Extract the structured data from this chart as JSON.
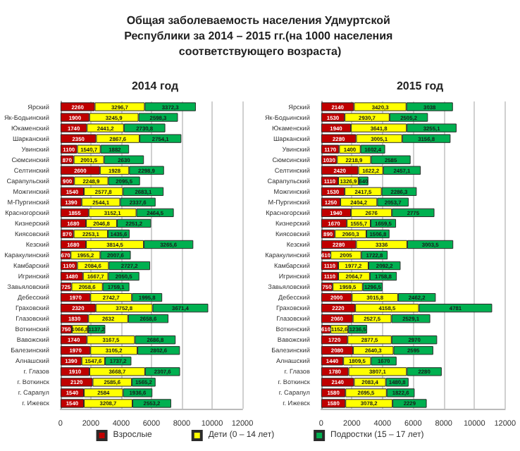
{
  "chart_data": [
    {
      "type": "bar",
      "title": "Общая заболеваемость населения Удмуртской Республики за 2014 – 2015 гг.(на 1000 населения соответствующего возраста)",
      "subtitle": "2014 год",
      "orientation": "horizontal",
      "stacked": true,
      "grid": "x",
      "legend": "bottom",
      "xlim": [
        0,
        12000
      ],
      "xticks": [
        0,
        2000,
        4000,
        6000,
        8000,
        10000,
        12000
      ],
      "categories": [
        "Ярский",
        "Як-Бодьинский",
        "Юкаменский",
        "Шарканский",
        "Увинский",
        "Сюмсинский",
        "Селтинский",
        "Сарапульский",
        "Можгинский",
        "М-Пургинский",
        "Красногорский",
        "Кизнерский",
        "Киясовский",
        "Кезский",
        "Каракулинский",
        "Камбарский",
        "Игринский",
        "Завьяловский",
        "Дебесский",
        "Граховский",
        "Глазовский",
        "Воткинский",
        "Вавожский",
        "Балезинский",
        "Алнашский",
        "г. Глазов",
        "г. Воткинск",
        "г. Сарапул",
        "г. Ижевск"
      ],
      "series": [
        {
          "name": "Взрослые",
          "color": "#c00000",
          "values": [
            2260,
            1900,
            1740,
            2350,
            1100,
            870,
            2600,
            900,
            1540,
            1390,
            1855,
            1680,
            870,
            1680,
            670,
            1100,
            1480,
            725,
            1970,
            2320,
            1830,
            750,
            1740,
            1970,
            1390,
            1910,
            2120,
            1540,
            1540
          ],
          "value_labels": [
            "2260",
            "1900",
            "1740",
            "2350",
            "1100",
            "870",
            "2600",
            "900",
            "1540",
            "1390",
            "1855",
            "1680",
            "870",
            "1680",
            "670",
            "1100",
            "1480",
            "725",
            "1970",
            "2320",
            "1830",
            "750",
            "1740",
            "1970",
            "1390",
            "1910",
            "2120",
            "1540",
            "1540"
          ]
        },
        {
          "name": "Дети (0 – 14 лет)",
          "color": "#ffff00",
          "values": [
            3296.7,
            3245.9,
            2441.2,
            2867.6,
            1540.7,
            2001.5,
            1928,
            2248.9,
            2577.8,
            2544.1,
            3152.1,
            2046.8,
            2253.1,
            3814.5,
            1955.2,
            2084.6,
            1667.7,
            2058.6,
            2742.7,
            3752.8,
            2632,
            1066.8,
            3167.5,
            3105.2,
            1547.6,
            3668.7,
            2585.6,
            2584,
            3208.7
          ],
          "value_labels": [
            "3296,7",
            "3245,9",
            "2441,2",
            "2867,6",
            "1540,7",
            "2001,5",
            "1928",
            "2248,9",
            "2577,8",
            "2544,1",
            "3152,1",
            "2046,8",
            "2253,1",
            "3814,5",
            "1955,2",
            "2084,6",
            "1667,7",
            "2058,6",
            "2742,7",
            "3752,8",
            "2632",
            "1066,8",
            "3167,5",
            "3105,2",
            "1547,6",
            "3668,7",
            "2585,6",
            "2584",
            "3208,7"
          ]
        },
        {
          "name": "Подростки (15 – 17 лет)",
          "color": "#00b050",
          "values": [
            3372.3,
            2598.3,
            2730.8,
            2754.1,
            1882,
            2630,
            2298.9,
            2095.5,
            2683.1,
            2337.6,
            2464.5,
            2251.2,
            1435.6,
            3265.6,
            2007.6,
            2727.2,
            2050.5,
            1759.1,
            1995.8,
            3671.4,
            2658.6,
            1137.2,
            2686.8,
            2802.6,
            1737.2,
            2307.6,
            1565.2,
            1936.6,
            2553.2
          ],
          "value_labels": [
            "3372,3",
            "2598,3",
            "2730,8",
            "2754,1",
            "1882",
            "2630",
            "2298,9",
            "2095,5",
            "2683,1",
            "2337,6",
            "2464,5",
            "2251,2",
            "1435,6",
            "3265,6",
            "2007,6",
            "2727,2",
            "2050,5",
            "1759,1",
            "1995,8",
            "3671,4",
            "2658,6",
            "1137,2",
            "2686,8",
            "2802,6",
            "1737,2",
            "2307,6",
            "1565,2",
            "1936,6",
            "2553,2"
          ]
        }
      ]
    },
    {
      "type": "bar",
      "subtitle": "2015 год",
      "orientation": "horizontal",
      "stacked": true,
      "grid": "x",
      "xlim": [
        0,
        12000
      ],
      "xticks": [
        0,
        2000,
        4000,
        6000,
        8000,
        10000,
        12000
      ],
      "categories": [
        "Ярский",
        "Як-Бодьинский",
        "Юкаменский",
        "Шарканский",
        "Увинский",
        "Сюмсинский",
        "Селтинский",
        "Сарапульский",
        "Можгинский",
        "М-Пургинский",
        "Красногорский",
        "Кизнерский",
        "Киясовский",
        "Кезский",
        "Каракулинский",
        "Камбарский",
        "Игринский",
        "Завьяловский",
        "Дебесский",
        "Граховский",
        "Глазовский",
        "Воткинский",
        "Вавожский",
        "Балезинский",
        "Алнашский",
        "г. Глазов",
        "г. Воткинск",
        "г. Сарапул",
        "г. Ижевск"
      ],
      "series": [
        {
          "color": "#c00000",
          "values": [
            2140,
            1530,
            1940,
            2280,
            1170,
            1030,
            2420,
            1110,
            1530,
            1250,
            1940,
            1670,
            890,
            2280,
            610,
            1110,
            1110,
            750,
            2000,
            2220,
            2060,
            610,
            1720,
            2080,
            1440,
            1780,
            2140,
            1580,
            1580
          ],
          "value_labels": [
            "2140",
            "1530",
            "1940",
            "2280",
            "1170",
            "1030",
            "2420",
            "1110",
            "1530",
            "1250",
            "1940",
            "1670",
            "890",
            "2280",
            "610",
            "1110",
            "1110",
            "750",
            "2000",
            "2220",
            "2060",
            "610",
            "1720",
            "2080",
            "1440",
            "1780",
            "2140",
            "1580",
            "1580"
          ]
        },
        {
          "color": "#ffff00",
          "values": [
            3420.3,
            2930.7,
            3641.8,
            3005.1,
            1400,
            2218.9,
            1622.2,
            1326.9,
            2417.5,
            2404.2,
            2676,
            1555.7,
            2060.3,
            3336,
            2005,
            1977.2,
            2064.7,
            1959.5,
            3015.8,
            4158.5,
            2527.5,
            1152.6,
            2877.5,
            2640.3,
            1809.5,
            3807.1,
            2083.4,
            2695.5,
            3078.2
          ],
          "value_labels": [
            "3420,3",
            "2930,7",
            "3641,8",
            "3005,1",
            "1400",
            "2218,9",
            "1622,2",
            "1326,9",
            "2417,5",
            "2404,2",
            "2676",
            "1555,7",
            "2060,3",
            "3336",
            "2005",
            "1977,2",
            "2064,7",
            "1959,5",
            "3015,8",
            "4158,5",
            "2527,5",
            "1152,6",
            "2877,5",
            "2640,3",
            "1809,5",
            "3807,1",
            "2083,4",
            "2695,5",
            "3078,2"
          ]
        },
        {
          "color": "#00b050",
          "values": [
            3038,
            2505.2,
            3255.1,
            3156.8,
            1602.4,
            2585,
            2457.1,
            640,
            2286.3,
            2053.7,
            2775,
            1659.5,
            1506.8,
            3003.5,
            1722.8,
            2092.2,
            1758.8,
            1296.5,
            2462.2,
            4781,
            2529.1,
            1236.5,
            2970,
            2595,
            1670,
            2280,
            1480.8,
            1822.6,
            2229
          ],
          "value_labels": [
            "3038",
            "2505,2",
            "3255,1",
            "3156,8",
            "1602,4",
            "2585",
            "2457,1",
            "640",
            "2286,3",
            "2053,7",
            "2775",
            "1659,5",
            "1506,8",
            "3003,5",
            "1722,8",
            "2092,2",
            "1758,8",
            "1296,5",
            "2462,2",
            "4781",
            "2529,1",
            "1236,5",
            "2970",
            "2595",
            "1670",
            "2280",
            "1480,8",
            "1822,6",
            "2229"
          ]
        }
      ]
    }
  ]
}
